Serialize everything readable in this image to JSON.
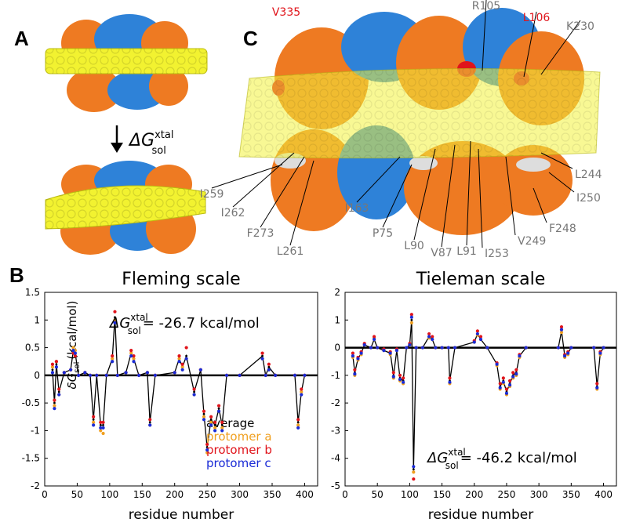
{
  "panel_a": {
    "label": "A",
    "arrow_label": {
      "symbol": "ΔG",
      "sup": "xtal",
      "sub": "sol"
    }
  },
  "panel_b": {
    "label": "B"
  },
  "panel_c": {
    "label": "C",
    "residues": [
      {
        "text": "V335",
        "color": "#e0141b"
      },
      {
        "text": "R105",
        "color": "#777777"
      },
      {
        "text": "L106",
        "color": "#e0141b"
      },
      {
        "text": "K230",
        "color": "#777777"
      },
      {
        "text": "L244",
        "color": "#777777"
      },
      {
        "text": "I250",
        "color": "#777777"
      },
      {
        "text": "F248",
        "color": "#777777"
      },
      {
        "text": "V249",
        "color": "#777777"
      },
      {
        "text": "I253",
        "color": "#777777"
      },
      {
        "text": "L91",
        "color": "#777777"
      },
      {
        "text": "V87",
        "color": "#777777"
      },
      {
        "text": "L90",
        "color": "#777777"
      },
      {
        "text": "P75",
        "color": "#777777"
      },
      {
        "text": "I163",
        "color": "#777777"
      },
      {
        "text": "L261",
        "color": "#777777"
      },
      {
        "text": "F273",
        "color": "#777777"
      },
      {
        "text": "I262",
        "color": "#777777"
      },
      {
        "text": "I259",
        "color": "#777777"
      }
    ]
  },
  "chart_data": [
    {
      "type": "line",
      "title": "Fleming scale",
      "xlabel": "residue number",
      "ylabel": {
        "symbol": "δG",
        "sub": "sol",
        "text": "(kcal/mol)"
      },
      "annotation": {
        "symbol": "ΔG",
        "sup": "xtal",
        "sub": "sol",
        "text": "= -26.7 kcal/mol"
      },
      "xlim": [
        0,
        420
      ],
      "xticks": [
        0,
        50,
        100,
        150,
        200,
        250,
        300,
        350,
        400
      ],
      "ylim": [
        -2,
        1.5
      ],
      "yticks": [
        -2,
        -1.5,
        -1,
        -0.5,
        0,
        0.5,
        1,
        1.5
      ],
      "x": [
        12,
        15,
        18,
        22,
        30,
        40,
        44,
        47,
        52,
        62,
        70,
        75,
        80,
        86,
        90,
        95,
        104,
        108,
        112,
        125,
        133,
        137,
        145,
        158,
        162,
        170,
        200,
        207,
        212,
        218,
        230,
        240,
        245,
        250,
        256,
        262,
        268,
        273,
        280,
        300,
        335,
        340,
        345,
        355,
        385,
        390,
        395,
        400
      ],
      "series": [
        {
          "name": "average",
          "color": "#000000",
          "style": "line",
          "values": [
            0.1,
            -0.5,
            0.2,
            -0.3,
            0.05,
            0.1,
            0.45,
            0.4,
            0.0,
            0.05,
            0.0,
            -0.8,
            0.0,
            -0.9,
            -0.9,
            0.0,
            0.3,
            1.05,
            0.0,
            0.05,
            0.4,
            0.3,
            0.0,
            0.05,
            -0.85,
            0.0,
            0.05,
            0.3,
            0.15,
            0.35,
            -0.3,
            0.1,
            -0.7,
            -1.3,
            -0.8,
            -0.9,
            -0.6,
            -0.9,
            0.0,
            0.0,
            0.35,
            0.0,
            0.15,
            0.0,
            0.0,
            -0.85,
            -0.3,
            0.0
          ]
        },
        {
          "name": "protomer a",
          "color": "#f0a020",
          "style": "markers",
          "values": [
            0.15,
            -0.55,
            0.25,
            -0.35,
            0.05,
            0.1,
            0.5,
            0.45,
            0.0,
            0.05,
            0.0,
            -0.85,
            0.0,
            -1.0,
            -1.05,
            0.0,
            0.3,
            1.0,
            0.0,
            0.05,
            0.4,
            0.3,
            0.0,
            0.05,
            -0.9,
            0.0,
            0.05,
            0.3,
            0.15,
            0.3,
            -0.35,
            0.1,
            -0.75,
            -1.4,
            -0.85,
            -0.95,
            -0.65,
            -0.95,
            0.0,
            0.0,
            0.3,
            0.0,
            0.1,
            0.0,
            0.0,
            -0.9,
            -0.3,
            0.0
          ]
        },
        {
          "name": "protomer b",
          "color": "#e0141b",
          "style": "markers",
          "values": [
            0.2,
            -0.45,
            0.25,
            -0.25,
            0.05,
            0.1,
            0.4,
            0.35,
            0.0,
            0.05,
            0.0,
            -0.75,
            0.0,
            -0.85,
            -0.85,
            0.0,
            0.35,
            1.15,
            0.0,
            0.05,
            0.45,
            0.35,
            0.0,
            0.05,
            -0.8,
            0.0,
            0.05,
            0.35,
            0.2,
            0.5,
            -0.25,
            0.1,
            -0.65,
            -1.25,
            -0.75,
            -0.85,
            -0.55,
            -0.85,
            0.0,
            0.0,
            0.4,
            0.0,
            0.2,
            0.0,
            0.0,
            -0.8,
            -0.25,
            0.0
          ]
        },
        {
          "name": "protomer c",
          "color": "#1a2bd6",
          "style": "markers",
          "values": [
            0.05,
            -0.6,
            0.15,
            -0.35,
            0.05,
            0.1,
            0.45,
            0.4,
            0.0,
            0.05,
            0.0,
            -0.9,
            0.0,
            -0.95,
            -0.95,
            0.0,
            0.25,
            0.95,
            0.0,
            0.05,
            0.35,
            0.25,
            0.0,
            0.05,
            -0.9,
            0.0,
            0.05,
            0.25,
            0.1,
            0.3,
            -0.35,
            0.1,
            -0.8,
            -1.35,
            -0.9,
            -1.0,
            -0.65,
            -1.0,
            0.0,
            0.0,
            0.3,
            0.0,
            0.1,
            0.0,
            0.0,
            -0.95,
            -0.35,
            0.0
          ]
        }
      ]
    },
    {
      "type": "line",
      "title": "Tieleman scale",
      "xlabel": "residue number",
      "annotation": {
        "symbol": "ΔG",
        "sup": "xtal",
        "sub": "sol",
        "text": "= -46.2 kcal/mol"
      },
      "xlim": [
        0,
        420
      ],
      "xticks": [
        0,
        50,
        100,
        150,
        200,
        250,
        300,
        350,
        400
      ],
      "ylim": [
        -5,
        2
      ],
      "yticks": [
        -5,
        -4,
        -3,
        -2,
        -1,
        0,
        1,
        2
      ],
      "x": [
        12,
        15,
        20,
        25,
        30,
        40,
        45,
        50,
        60,
        70,
        75,
        80,
        85,
        90,
        95,
        100,
        103,
        106,
        110,
        120,
        130,
        135,
        140,
        150,
        160,
        162,
        170,
        200,
        205,
        210,
        220,
        235,
        240,
        245,
        250,
        255,
        260,
        265,
        270,
        280,
        330,
        335,
        340,
        345,
        350,
        385,
        390,
        395,
        400
      ],
      "series": [
        {
          "color": "#000000",
          "style": "line",
          "values": [
            -0.3,
            -0.9,
            -0.4,
            -0.2,
            0.1,
            0.0,
            0.3,
            0.0,
            -0.1,
            -0.2,
            -1.0,
            -0.1,
            -1.1,
            -1.2,
            0.0,
            0.1,
            1.0,
            -4.4,
            0.0,
            0.0,
            0.4,
            0.3,
            0.0,
            0.0,
            0.0,
            -1.2,
            0.0,
            0.2,
            0.5,
            0.3,
            0.0,
            -0.6,
            -1.4,
            -1.2,
            -1.6,
            -1.3,
            -1.0,
            -0.9,
            -0.3,
            0.0,
            0.0,
            0.6,
            -0.3,
            -0.2,
            0.0,
            0.0,
            -1.4,
            -0.2,
            0.0
          ]
        },
        {
          "color": "#f0a020",
          "style": "markers",
          "values": [
            -0.35,
            -1.0,
            -0.45,
            -0.25,
            0.1,
            0.0,
            0.35,
            0.0,
            -0.1,
            -0.25,
            -1.1,
            -0.1,
            -1.2,
            -1.3,
            0.0,
            0.1,
            0.9,
            -4.5,
            0.0,
            0.0,
            0.35,
            0.3,
            0.0,
            0.0,
            0.0,
            -1.3,
            0.0,
            0.2,
            0.45,
            0.3,
            0.0,
            -0.65,
            -1.5,
            -1.3,
            -1.7,
            -1.4,
            -1.1,
            -1.0,
            -0.35,
            0.0,
            0.0,
            0.55,
            -0.35,
            -0.25,
            0.0,
            0.0,
            -1.5,
            -0.25,
            0.0
          ]
        },
        {
          "color": "#e0141b",
          "style": "markers",
          "values": [
            -0.2,
            -0.8,
            -0.35,
            -0.15,
            0.15,
            0.0,
            0.4,
            0.0,
            -0.05,
            -0.15,
            -0.9,
            -0.05,
            -1.0,
            -1.1,
            0.0,
            0.15,
            1.2,
            -4.75,
            0.0,
            0.0,
            0.5,
            0.4,
            0.0,
            0.0,
            0.0,
            -1.1,
            0.0,
            0.25,
            0.6,
            0.4,
            0.0,
            -0.55,
            -1.3,
            -1.1,
            -1.5,
            -1.2,
            -0.9,
            -0.8,
            -0.25,
            0.0,
            0.0,
            0.75,
            -0.25,
            -0.15,
            0.0,
            0.0,
            -1.3,
            -0.15,
            0.0
          ]
        },
        {
          "color": "#1a2bd6",
          "style": "markers",
          "values": [
            -0.3,
            -0.95,
            -0.4,
            -0.2,
            0.1,
            0.0,
            0.3,
            0.0,
            -0.1,
            -0.2,
            -1.05,
            -0.1,
            -1.15,
            -1.25,
            0.0,
            0.1,
            1.1,
            -4.3,
            0.0,
            0.0,
            0.4,
            0.3,
            0.0,
            0.0,
            0.0,
            -1.25,
            0.0,
            0.2,
            0.5,
            0.3,
            0.0,
            -0.6,
            -1.45,
            -1.25,
            -1.65,
            -1.35,
            -1.05,
            -0.95,
            -0.3,
            0.0,
            0.0,
            0.65,
            -0.3,
            -0.2,
            0.0,
            0.0,
            -1.45,
            -0.2,
            0.0
          ]
        }
      ]
    }
  ]
}
